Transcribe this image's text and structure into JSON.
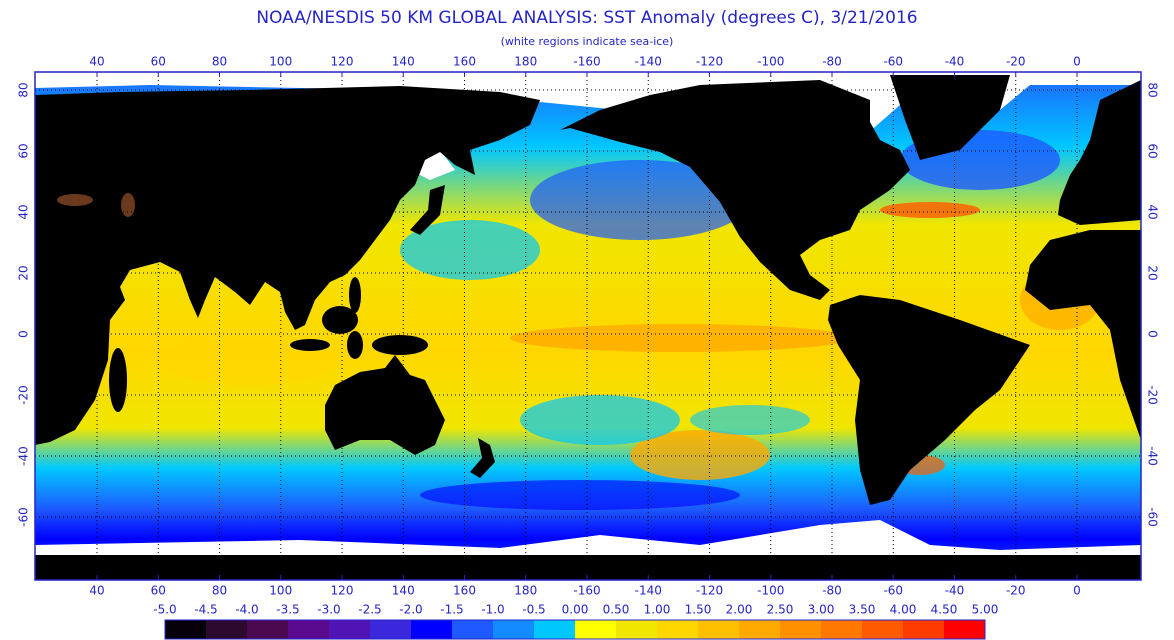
{
  "header": {
    "title": "NOAA/NESDIS 50 KM GLOBAL ANALYSIS: SST Anomaly (degrees C), 3/21/2016",
    "subtitle": "(white regions indicate sea-ice)"
  },
  "map": {
    "longitude_ticks": [
      40,
      60,
      80,
      100,
      120,
      140,
      160,
      180,
      -160,
      -140,
      -120,
      -100,
      -80,
      -60,
      -40,
      -20,
      0
    ],
    "latitude_ticks": [
      80,
      60,
      40,
      20,
      0,
      -20,
      -40,
      -60
    ]
  },
  "colorbar": {
    "labels": [
      "-5.0",
      "-4.5",
      "-4.0",
      "-3.5",
      "-3.0",
      "-2.5",
      "-2.0",
      "-1.5",
      "-1.0",
      "-0.5",
      "0.00",
      "0.50",
      "1.00",
      "1.50",
      "2.00",
      "2.50",
      "3.00",
      "3.50",
      "4.00",
      "4.50",
      "5.00"
    ],
    "colors": [
      "#05000a",
      "#2d0a2d",
      "#4b0a50",
      "#5a0a8c",
      "#5014b4",
      "#3c28dc",
      "#0000ff",
      "#1e5aff",
      "#148cff",
      "#00c8ff",
      "#ffff00",
      "#f0e600",
      "#ffd700",
      "#ffc000",
      "#ffaa00",
      "#ff9100",
      "#ff7800",
      "#ff5a00",
      "#ff3c00",
      "#ff0000"
    ]
  }
}
